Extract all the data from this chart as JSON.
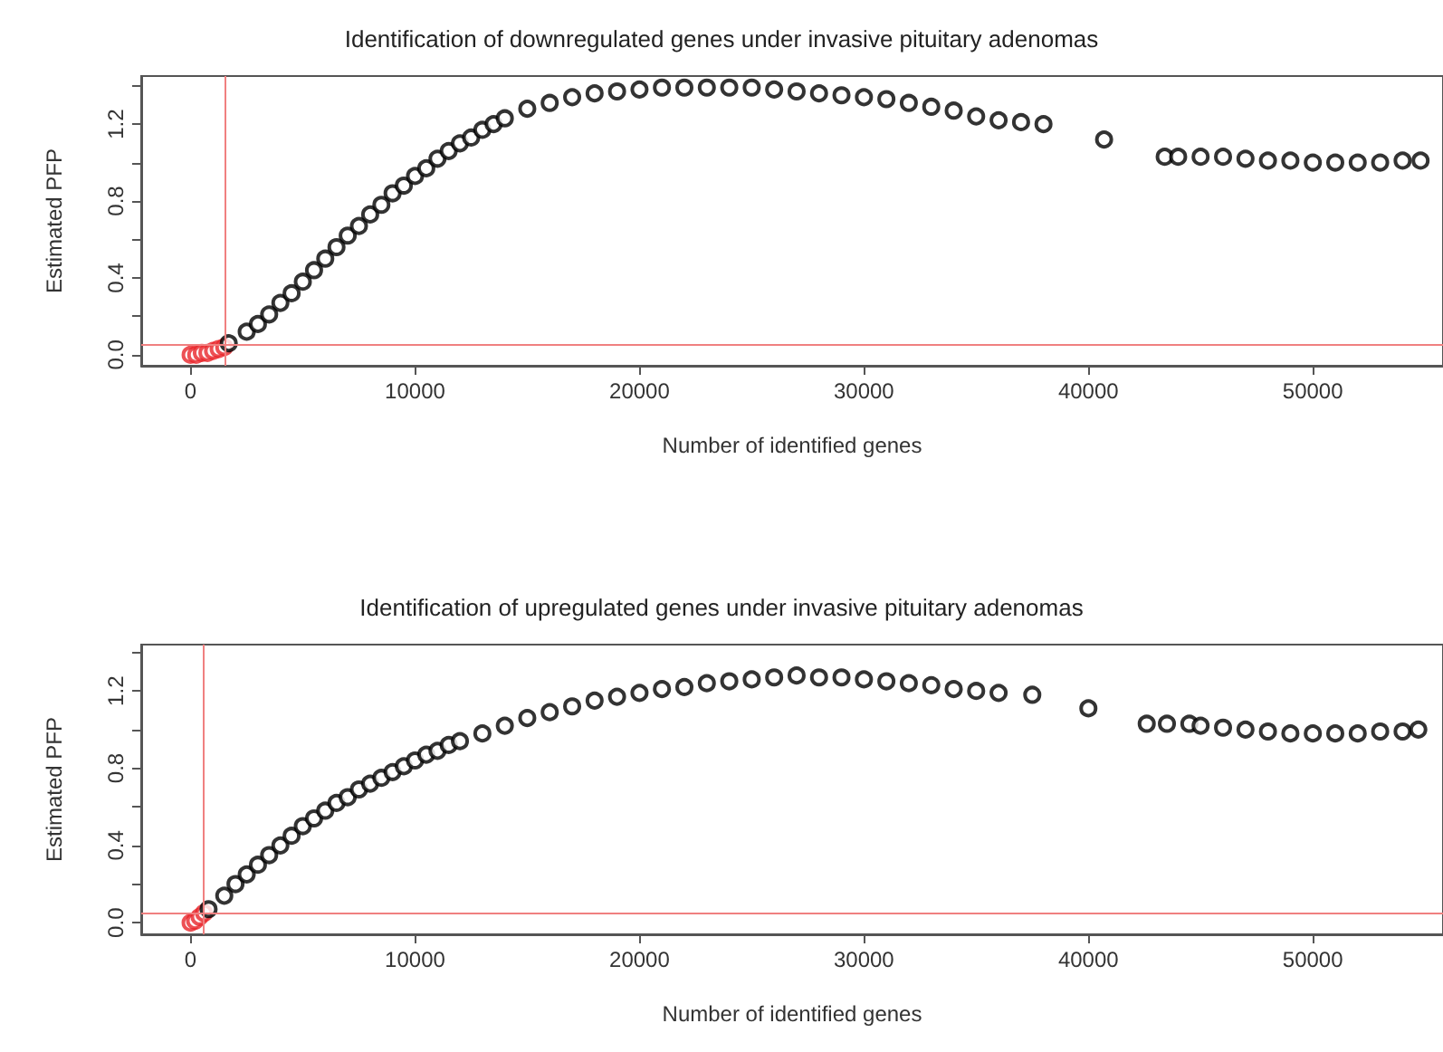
{
  "chart_data": [
    {
      "type": "scatter",
      "title": "Identification of downregulated genes under invasive pituitary adenomas",
      "xlabel": "Number of identified genes",
      "ylabel": "Estimated PFP",
      "marker": "circle",
      "xlim": [
        -2200,
        55800
      ],
      "xticks": [
        0,
        10000,
        20000,
        30000,
        40000,
        50000
      ],
      "ylim": [
        -0.057,
        1.45
      ],
      "yticks": [
        {
          "value": 0,
          "label": "0.0"
        },
        {
          "value": 0.2,
          "label": null
        },
        0.4,
        {
          "value": 0.6,
          "label": null
        },
        0.8,
        {
          "value": 1.0,
          "label": null
        },
        1.2,
        {
          "value": 1.4,
          "label": null
        }
      ],
      "ref_lines": [
        {
          "axis": "x",
          "value": 1500,
          "color": "#f08080"
        },
        {
          "axis": "y",
          "value": 0.05,
          "color": "#f08080"
        }
      ],
      "series": [
        {
          "color": "#e8262a",
          "x": [
            0,
            250,
            500,
            750,
            1000,
            1250,
            1500
          ],
          "values": [
            0.0,
            0.0,
            0.01,
            0.01,
            0.02,
            0.03,
            0.04
          ]
        },
        {
          "color": "#000000",
          "x": [
            1700,
            2500,
            3000,
            3500,
            4000,
            4500,
            5000,
            5500,
            6000,
            6500,
            7000,
            7500,
            8000,
            8500,
            9000,
            9500,
            10000,
            10500,
            11000,
            11500,
            12000,
            12500,
            13000,
            13500,
            14000,
            15000,
            16000,
            17000,
            18000,
            19000,
            20000,
            21000,
            22000,
            23000,
            24000,
            25000,
            26000,
            27000,
            28000,
            29000,
            30000,
            31000,
            32000,
            33000,
            34000,
            35000,
            36000,
            37000,
            38000,
            40700,
            43400,
            44000,
            45000,
            46000,
            47000,
            48000,
            49000,
            50000,
            51000,
            52000,
            53000,
            54000,
            54800
          ],
          "values": [
            0.06,
            0.12,
            0.16,
            0.21,
            0.27,
            0.32,
            0.38,
            0.44,
            0.5,
            0.56,
            0.62,
            0.67,
            0.73,
            0.78,
            0.84,
            0.88,
            0.93,
            0.97,
            1.02,
            1.06,
            1.1,
            1.13,
            1.17,
            1.2,
            1.23,
            1.28,
            1.31,
            1.34,
            1.36,
            1.37,
            1.38,
            1.39,
            1.39,
            1.39,
            1.39,
            1.39,
            1.38,
            1.37,
            1.36,
            1.35,
            1.34,
            1.33,
            1.31,
            1.29,
            1.27,
            1.24,
            1.22,
            1.21,
            1.2,
            1.12,
            1.03,
            1.03,
            1.03,
            1.03,
            1.02,
            1.01,
            1.01,
            1.0,
            1.0,
            1.0,
            1.0,
            1.01,
            1.01
          ]
        }
      ]
    },
    {
      "type": "scatter",
      "title": "Identification of upregulated genes under invasive pituitary adenomas",
      "xlabel": "Number of identified genes",
      "ylabel": "Estimated PFP",
      "marker": "circle",
      "xlim": [
        -2200,
        55800
      ],
      "xticks": [
        0,
        10000,
        20000,
        30000,
        40000,
        50000
      ],
      "ylim": [
        -0.06,
        1.44
      ],
      "yticks": [
        {
          "value": 0,
          "label": "0.0"
        },
        {
          "value": 0.2,
          "label": null
        },
        0.4,
        {
          "value": 0.6,
          "label": null
        },
        0.8,
        {
          "value": 1.0,
          "label": null
        },
        1.2,
        {
          "value": 1.4,
          "label": null
        }
      ],
      "ref_lines": [
        {
          "axis": "x",
          "value": 560,
          "color": "#f08080"
        },
        {
          "axis": "y",
          "value": 0.05,
          "color": "#f08080"
        }
      ],
      "series": [
        {
          "color": "#e8262a",
          "x": [
            0,
            200,
            400,
            600
          ],
          "values": [
            0.0,
            0.01,
            0.03,
            0.05
          ]
        },
        {
          "color": "#000000",
          "x": [
            800,
            1500,
            2000,
            2500,
            3000,
            3500,
            4000,
            4500,
            5000,
            5500,
            6000,
            6500,
            7000,
            7500,
            8000,
            8500,
            9000,
            9500,
            10000,
            10500,
            11000,
            11500,
            12000,
            13000,
            14000,
            15000,
            16000,
            17000,
            18000,
            19000,
            20000,
            21000,
            22000,
            23000,
            24000,
            25000,
            26000,
            27000,
            28000,
            29000,
            30000,
            31000,
            32000,
            33000,
            34000,
            35000,
            36000,
            37500,
            40000,
            42600,
            43500,
            44500,
            45000,
            46000,
            47000,
            48000,
            49000,
            50000,
            51000,
            52000,
            53000,
            54000,
            54700
          ],
          "values": [
            0.07,
            0.14,
            0.2,
            0.25,
            0.3,
            0.35,
            0.4,
            0.45,
            0.5,
            0.54,
            0.58,
            0.62,
            0.65,
            0.69,
            0.72,
            0.75,
            0.78,
            0.81,
            0.84,
            0.87,
            0.89,
            0.92,
            0.94,
            0.98,
            1.02,
            1.06,
            1.09,
            1.12,
            1.15,
            1.17,
            1.19,
            1.21,
            1.22,
            1.24,
            1.25,
            1.26,
            1.27,
            1.28,
            1.27,
            1.27,
            1.26,
            1.25,
            1.24,
            1.23,
            1.21,
            1.2,
            1.19,
            1.18,
            1.11,
            1.03,
            1.03,
            1.03,
            1.02,
            1.01,
            1.0,
            0.99,
            0.98,
            0.98,
            0.98,
            0.98,
            0.99,
            0.99,
            1.0
          ]
        }
      ]
    }
  ]
}
